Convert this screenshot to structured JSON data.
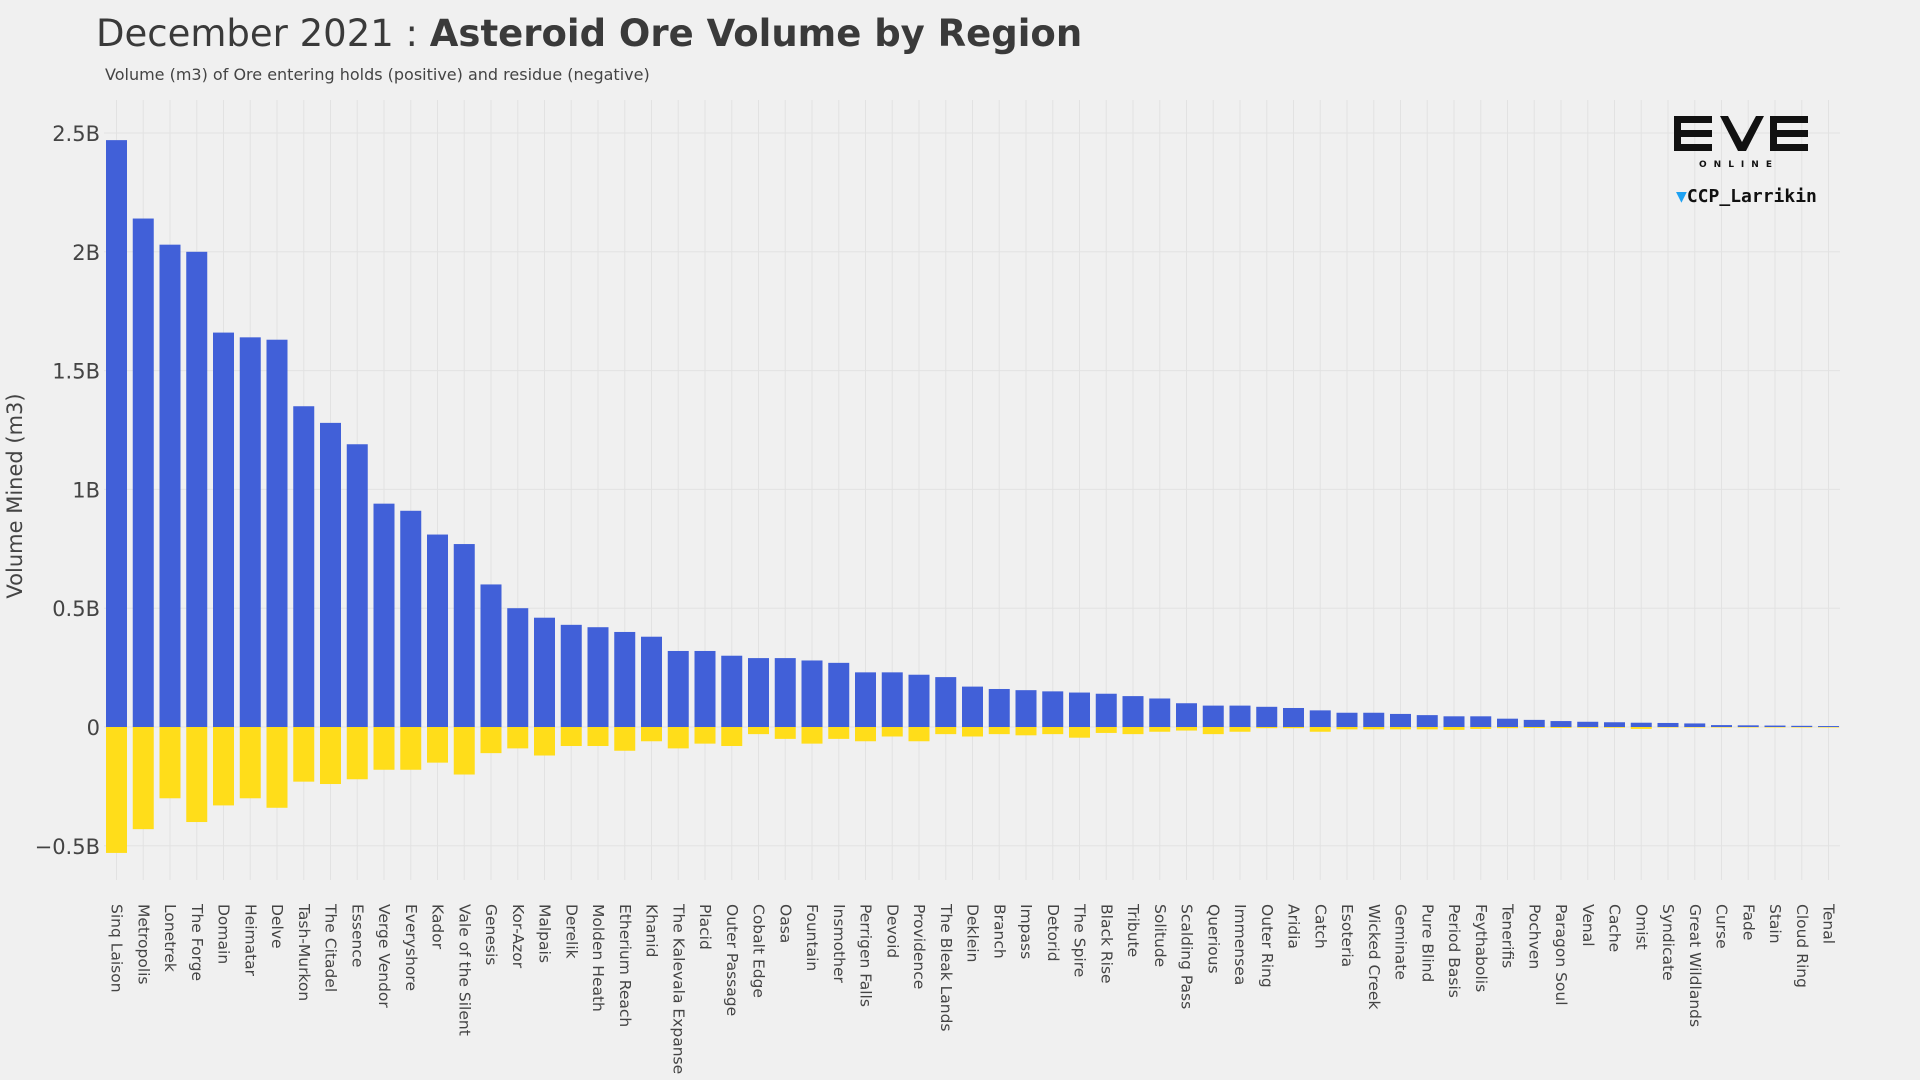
{
  "header": {
    "title_prefix": "December 2021 : ",
    "title_main": "Asteroid Ore Volume by Region",
    "subtitle": "Volume (m3) of Ore entering holds (positive) and residue (negative)"
  },
  "branding": {
    "logo_text": "EVE",
    "logo_sub": "ONLINE",
    "twitter_handle": "CCP_Larrikin"
  },
  "colors": {
    "positive": "#4160d8",
    "negative": "#ffdd1a",
    "grid": "#e2e2e2",
    "background": "#f0f0f0"
  },
  "chart_data": {
    "type": "bar",
    "title": "December 2021 : Asteroid Ore Volume by Region",
    "subtitle": "Volume (m3) of Ore entering holds (positive) and residue (negative)",
    "xlabel": "",
    "ylabel": "Volume Mined (m3)",
    "ylim": [
      -0.7,
      2.65
    ],
    "yticks": [
      -0.5,
      0,
      0.5,
      1,
      1.5,
      2,
      2.5
    ],
    "ytick_labels": [
      "−0.5B",
      "0",
      "0.5B",
      "1B",
      "1.5B",
      "2B",
      "2.5B"
    ],
    "units": "billions of m3",
    "grid": true,
    "categories": [
      "Sinq Laison",
      "Metropolis",
      "Lonetrek",
      "The Forge",
      "Domain",
      "Heimatar",
      "Delve",
      "Tash-Murkon",
      "The Citadel",
      "Essence",
      "Verge Vendor",
      "Everyshore",
      "Kador",
      "Vale of the Silent",
      "Genesis",
      "Kor-Azor",
      "Malpais",
      "Derelik",
      "Molden Heath",
      "Etherium Reach",
      "Khanid",
      "The Kalevala Expanse",
      "Placid",
      "Outer Passage",
      "Cobalt Edge",
      "Oasa",
      "Fountain",
      "Insmother",
      "Perrigen Falls",
      "Devoid",
      "Providence",
      "The Bleak Lands",
      "Deklein",
      "Branch",
      "Impass",
      "Detorid",
      "The Spire",
      "Black Rise",
      "Tribute",
      "Solitude",
      "Scalding Pass",
      "Querious",
      "Immensea",
      "Outer Ring",
      "Aridia",
      "Catch",
      "Esoteria",
      "Wicked Creek",
      "Geminate",
      "Pure Blind",
      "Period Basis",
      "Feythabolis",
      "Tenerifis",
      "Pochven",
      "Paragon Soul",
      "Venal",
      "Cache",
      "Omist",
      "Syndicate",
      "Great Wildlands",
      "Curse",
      "Fade",
      "Stain",
      "Cloud Ring",
      "Tenal"
    ],
    "series": [
      {
        "values": [
          2.47,
          2.14,
          2.03,
          2.0,
          1.66,
          1.64,
          1.63,
          1.35,
          1.28,
          1.19,
          0.94,
          0.91,
          0.81,
          0.77,
          0.6,
          0.5,
          0.46,
          0.43,
          0.42,
          0.4,
          0.38,
          0.32,
          0.32,
          0.3,
          0.29,
          0.29,
          0.28,
          0.27,
          0.23,
          0.23,
          0.22,
          0.21,
          0.17,
          0.16,
          0.155,
          0.15,
          0.145,
          0.14,
          0.13,
          0.12,
          0.1,
          0.09,
          0.09,
          0.085,
          0.08,
          0.07,
          0.06,
          0.06,
          0.055,
          0.05,
          0.045,
          0.045,
          0.035,
          0.03,
          0.025,
          0.022,
          0.02,
          0.018,
          0.017,
          0.015,
          0.008,
          0.007,
          0.006,
          0.005,
          0.004
        ]
      },
      {
        "values": [
          -0.53,
          -0.43,
          -0.3,
          -0.4,
          -0.33,
          -0.3,
          -0.34,
          -0.23,
          -0.24,
          -0.22,
          -0.18,
          -0.18,
          -0.15,
          -0.2,
          -0.11,
          -0.09,
          -0.12,
          -0.08,
          -0.08,
          -0.1,
          -0.06,
          -0.09,
          -0.07,
          -0.08,
          -0.03,
          -0.05,
          -0.07,
          -0.05,
          -0.06,
          -0.04,
          -0.06,
          -0.03,
          -0.04,
          -0.03,
          -0.035,
          -0.03,
          -0.045,
          -0.025,
          -0.03,
          -0.02,
          -0.015,
          -0.03,
          -0.02,
          -0.005,
          -0.005,
          -0.02,
          -0.01,
          -0.01,
          -0.01,
          -0.01,
          -0.012,
          -0.008,
          -0.005,
          -0.004,
          -0.004,
          -0.003,
          -0.003,
          -0.008,
          -0.002,
          -0.002,
          -0.001,
          -0.001,
          -0.001,
          -0.001,
          -0.001
        ]
      }
    ]
  }
}
